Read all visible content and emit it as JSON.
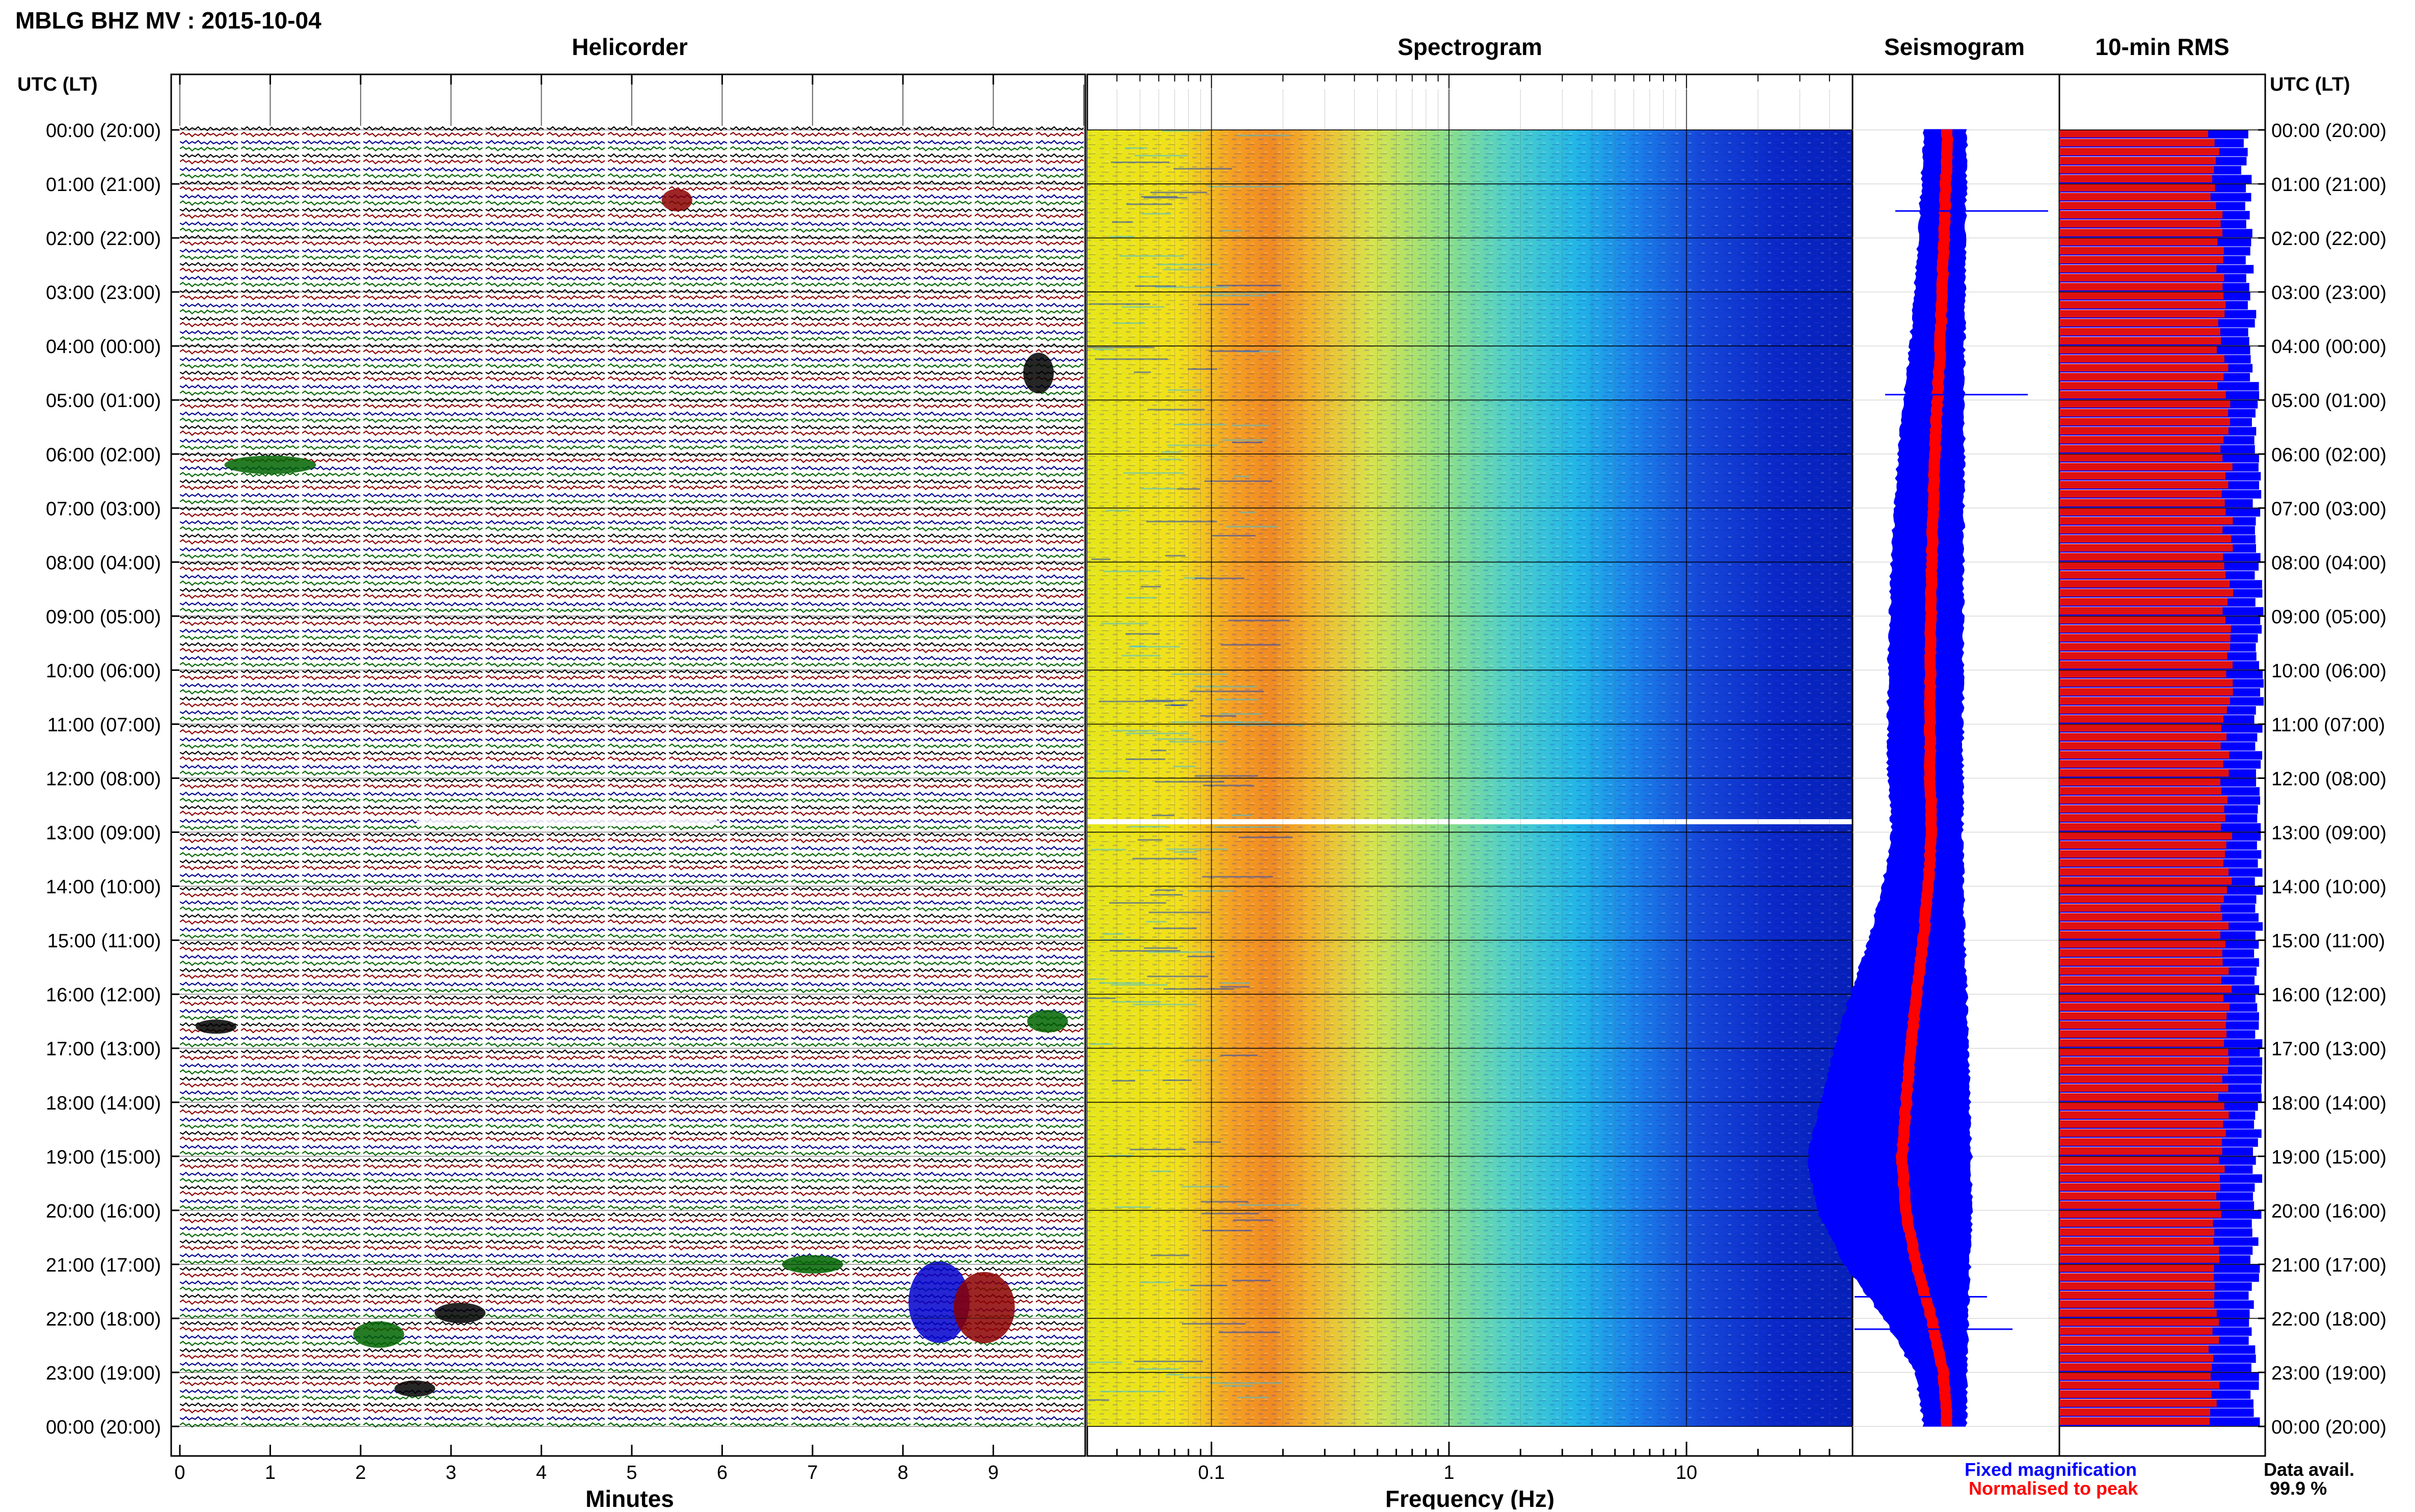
{
  "header": {
    "station_title": "MBLG BHZ MV : 2015-10-04",
    "utc_lt_label": "UTC (LT)"
  },
  "panels": {
    "helicorder": "Helicorder",
    "spectrogram": "Spectrogram",
    "seismogram": "Seismogram",
    "rms": "10-min RMS"
  },
  "axes": {
    "minutes_label": "Minutes",
    "minute_ticks": [
      "0",
      "1",
      "2",
      "3",
      "4",
      "5",
      "6",
      "7",
      "8",
      "9"
    ],
    "frequency_label": "Frequency (Hz)",
    "frequency_ticks": [
      "0.1",
      "1",
      "10"
    ]
  },
  "hour_labels": [
    "00:00 (20:00)",
    "01:00 (21:00)",
    "02:00 (22:00)",
    "03:00 (23:00)",
    "04:00 (00:00)",
    "05:00 (01:00)",
    "06:00 (02:00)",
    "07:00 (03:00)",
    "08:00 (04:00)",
    "09:00 (05:00)",
    "10:00 (06:00)",
    "11:00 (07:00)",
    "12:00 (08:00)",
    "13:00 (09:00)",
    "14:00 (10:00)",
    "15:00 (11:00)",
    "16:00 (12:00)",
    "17:00 (13:00)",
    "18:00 (14:00)",
    "19:00 (15:00)",
    "20:00 (16:00)",
    "21:00 (17:00)",
    "22:00 (18:00)",
    "23:00 (19:00)",
    "00:00 (20:00)"
  ],
  "legend": {
    "fixed_magnification": "Fixed magnification",
    "normalised_to_peak": "Normalised to peak",
    "data_avail_label": "Data avail.",
    "data_avail_value": "99.9 %"
  },
  "colors": {
    "fixed": "#0000ff",
    "normalised": "#ff0000",
    "trace_cycle": [
      "#000000",
      "#8b0000",
      "#00008b",
      "#006400"
    ]
  },
  "chart_data": [
    {
      "type": "line",
      "panel": "Helicorder",
      "xlabel": "Minutes",
      "xlim": [
        0,
        10
      ],
      "rows_per_hour": 6,
      "hours": 24
    },
    {
      "type": "heatmap",
      "panel": "Spectrogram",
      "xlabel": "Frequency (Hz)",
      "xscale": "log",
      "xlim": [
        0.03,
        50
      ],
      "dominant_band_hz": [
        0.15,
        0.45
      ],
      "data_gap_utc": "12:50"
    },
    {
      "type": "area",
      "panel": "Seismogram",
      "series": [
        {
          "name": "Fixed magnification",
          "hours_utc": [
            0,
            2,
            4,
            6,
            8,
            10,
            12,
            13,
            14,
            15,
            16,
            17,
            18,
            19,
            20,
            21,
            22,
            23,
            24
          ],
          "half_width_rel": [
            0.14,
            0.17,
            0.22,
            0.3,
            0.34,
            0.36,
            0.36,
            0.33,
            0.4,
            0.5,
            0.64,
            0.76,
            0.86,
            0.96,
            0.9,
            0.7,
            0.42,
            0.2,
            0.14
          ]
        },
        {
          "name": "Normalised to peak",
          "hours_utc": [
            0,
            24
          ]
        }
      ]
    },
    {
      "type": "bar",
      "panel": "10-min RMS",
      "orientation": "horizontal",
      "bins_per_hour": 6,
      "series": [
        {
          "name": "Fixed magnification",
          "hours_utc": [
            0,
            2,
            4,
            6,
            8,
            10,
            12,
            14,
            16,
            18,
            20,
            22,
            24
          ],
          "values_rel": [
            0.9,
            0.92,
            0.94,
            0.96,
            0.97,
            0.97,
            0.97,
            0.97,
            0.97,
            0.97,
            0.96,
            0.94,
            0.95
          ]
        },
        {
          "name": "Normalised to peak",
          "hours_utc": [
            0,
            2,
            4,
            6,
            8,
            10,
            12,
            14,
            16,
            18,
            20,
            22,
            24
          ],
          "values_rel": [
            0.75,
            0.77,
            0.79,
            0.81,
            0.82,
            0.82,
            0.81,
            0.81,
            0.81,
            0.8,
            0.78,
            0.75,
            0.76
          ]
        }
      ]
    }
  ]
}
